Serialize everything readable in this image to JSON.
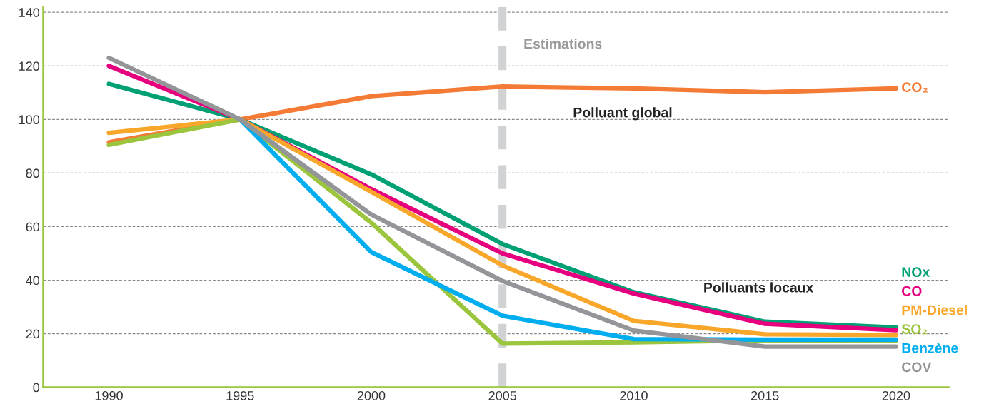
{
  "chart_data": {
    "type": "line",
    "x": [
      1990,
      1995,
      2000,
      2005,
      2010,
      2015,
      2020
    ],
    "series": [
      {
        "name": "CO₂",
        "color": "#f47b35",
        "values": [
          91.5,
          100,
          108.7,
          112.3,
          111.6,
          110.2,
          111.6
        ]
      },
      {
        "name": "NOx",
        "color": "#00a075",
        "values": [
          113.3,
          100,
          79.5,
          53.5,
          35.5,
          24.5,
          22.3
        ]
      },
      {
        "name": "CO",
        "color": "#e6007e",
        "values": [
          120,
          100,
          74,
          50,
          35,
          23.7,
          21.3
        ]
      },
      {
        "name": "PM-Diesel",
        "color": "#f9a72b",
        "values": [
          95,
          100,
          73,
          45.5,
          24.8,
          19.8,
          19.5
        ]
      },
      {
        "name": "SO₂",
        "color": "#9bc53d",
        "values": [
          90.5,
          100,
          61.5,
          16.3,
          16.8,
          17.5,
          17.5
        ]
      },
      {
        "name": "Benzène",
        "color": "#00aeef",
        "values": [
          null,
          100,
          50.5,
          26.7,
          18,
          17.8,
          17.8
        ]
      },
      {
        "name": "COV",
        "color": "#939598",
        "values": [
          123,
          100,
          64.5,
          39.7,
          21.2,
          15.2,
          15.2
        ]
      }
    ],
    "xlim": [
      1987.5,
      2022
    ],
    "xticks": [
      1990,
      1995,
      2000,
      2005,
      2010,
      2015,
      2020
    ],
    "ylim": [
      0,
      142
    ],
    "yticks": [
      0,
      20,
      40,
      60,
      80,
      100,
      120,
      140
    ],
    "grid": "y",
    "legend": false,
    "marker": "none",
    "line_style": "solid",
    "ref_lines": [
      {
        "axis": "x",
        "value": 2005,
        "label": "Estimations",
        "color": "#d1d2d4",
        "line_style": "dashed"
      }
    ],
    "annotations": [
      "Polluant global",
      "Polluants locaux"
    ]
  }
}
